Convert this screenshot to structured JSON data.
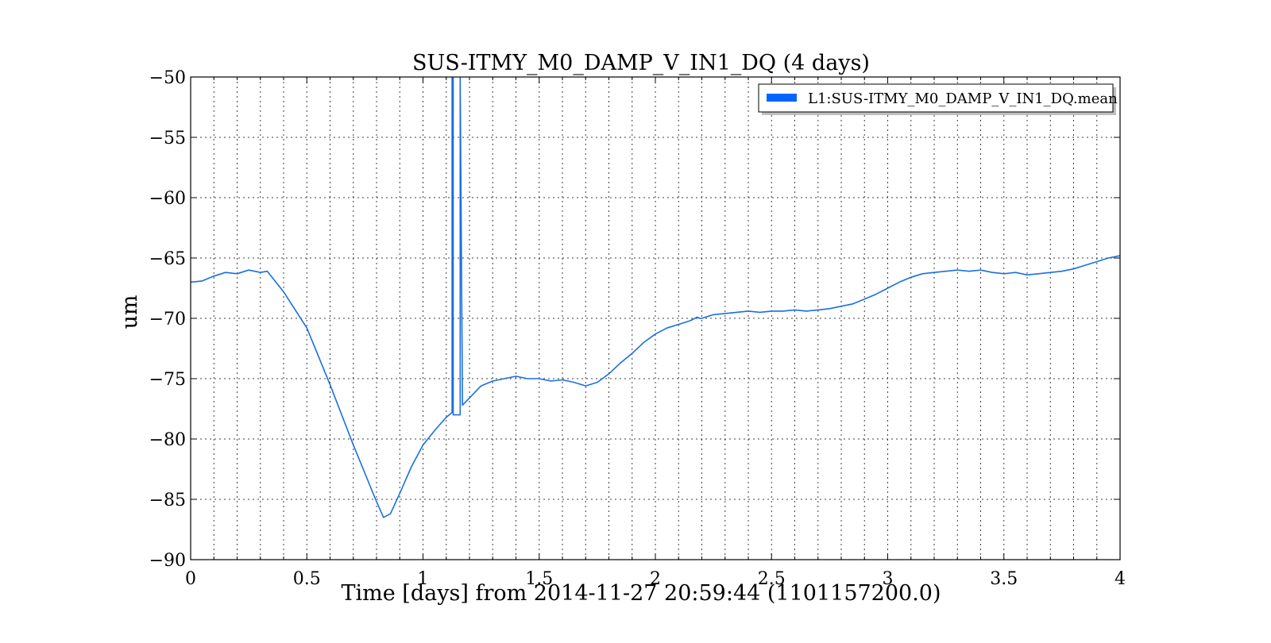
{
  "chart_data": {
    "type": "line",
    "title": "SUS-ITMY_M0_DAMP_V_IN1_DQ (4 days)",
    "xlabel": "Time [days] from 2014-11-27 20:59:44 (1101157200.0)",
    "ylabel": "um",
    "xlim": [
      0,
      4
    ],
    "ylim": [
      -90,
      -50
    ],
    "xticks": [
      0,
      0.5,
      1,
      1.5,
      2,
      2.5,
      3,
      3.5,
      4
    ],
    "xtick_labels": [
      "0",
      "0.5",
      "1",
      "1.5",
      "2",
      "2.5",
      "3",
      "3.5",
      "4"
    ],
    "yticks": [
      -90,
      -85,
      -80,
      -75,
      -70,
      -65,
      -60,
      -55,
      -50
    ],
    "ytick_labels": [
      "−90",
      "−85",
      "−80",
      "−75",
      "−70",
      "−65",
      "−60",
      "−55",
      "−50"
    ],
    "grid": true,
    "legend_position": "top-right",
    "series": [
      {
        "name": "L1:SUS-ITMY_M0_DAMP_V_IN1_DQ.mean",
        "color": "#1a6fe0",
        "legend_color": "#0066ff",
        "x": [
          0,
          0.05,
          0.1,
          0.15,
          0.2,
          0.25,
          0.3,
          0.33,
          0.4,
          0.5,
          0.6,
          0.7,
          0.8,
          0.83,
          0.86,
          0.9,
          0.95,
          1.0,
          1.05,
          1.1,
          1.125,
          1.125,
          1.13,
          1.13,
          1.16,
          1.16,
          1.17,
          1.2,
          1.25,
          1.3,
          1.35,
          1.4,
          1.45,
          1.5,
          1.55,
          1.6,
          1.65,
          1.7,
          1.75,
          1.8,
          1.85,
          1.9,
          1.95,
          2.0,
          2.05,
          2.1,
          2.15,
          2.18,
          2.19,
          2.2,
          2.25,
          2.3,
          2.35,
          2.4,
          2.45,
          2.5,
          2.55,
          2.6,
          2.65,
          2.7,
          2.75,
          2.8,
          2.85,
          2.9,
          2.95,
          3.0,
          3.05,
          3.1,
          3.15,
          3.2,
          3.25,
          3.3,
          3.35,
          3.4,
          3.45,
          3.5,
          3.55,
          3.6,
          3.65,
          3.7,
          3.75,
          3.8,
          3.85,
          3.9,
          3.95,
          4.0
        ],
        "y": [
          -67.0,
          -66.9,
          -66.5,
          -66.2,
          -66.3,
          -66.0,
          -66.2,
          -66.1,
          -67.8,
          -70.8,
          -75.5,
          -80.5,
          -85.2,
          -86.5,
          -86.2,
          -84.5,
          -82.3,
          -80.5,
          -79.3,
          -78.2,
          -77.8,
          -50,
          -50,
          -78.0,
          -78.0,
          -50,
          -77.2,
          -76.6,
          -75.6,
          -75.2,
          -75.0,
          -74.8,
          -75.0,
          -75.0,
          -75.2,
          -75.1,
          -75.3,
          -75.6,
          -75.3,
          -74.6,
          -73.7,
          -72.9,
          -72.0,
          -71.3,
          -70.8,
          -70.5,
          -70.2,
          -69.9,
          -70.0,
          -70.0,
          -69.7,
          -69.6,
          -69.5,
          -69.4,
          -69.5,
          -69.4,
          -69.4,
          -69.3,
          -69.4,
          -69.3,
          -69.2,
          -69.0,
          -68.8,
          -68.4,
          -68.0,
          -67.5,
          -67.0,
          -66.6,
          -66.3,
          -66.2,
          -66.1,
          -66.0,
          -66.1,
          -66.0,
          -66.2,
          -66.3,
          -66.2,
          -66.4,
          -66.3,
          -66.2,
          -66.1,
          -65.9,
          -65.6,
          -65.3,
          -65.0,
          -64.8
        ]
      }
    ]
  }
}
